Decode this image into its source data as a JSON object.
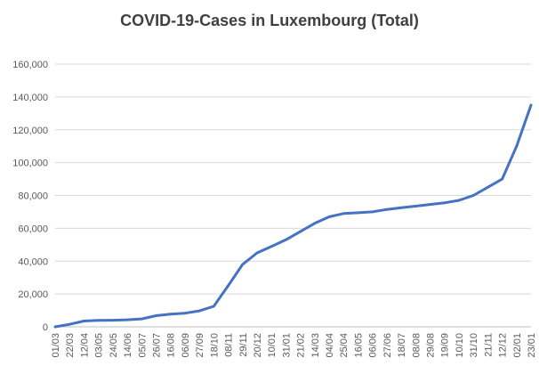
{
  "chart_data": {
    "type": "line",
    "title": "COVID-19-Cases in Luxembourg (Total)",
    "xlabel": "",
    "ylabel": "",
    "ylim": [
      0,
      160000
    ],
    "yticks": [
      0,
      20000,
      40000,
      60000,
      80000,
      100000,
      120000,
      140000,
      160000
    ],
    "ytick_labels": [
      "0",
      "20,000",
      "40,000",
      "60,000",
      "80,000",
      "100,000",
      "120,000",
      "140,000",
      "160,000"
    ],
    "grid": "horizontal",
    "legend": "none",
    "line_color": "#4472C4",
    "x": [
      "01/03",
      "22/03",
      "12/04",
      "03/05",
      "24/05",
      "14/06",
      "05/07",
      "26/07",
      "16/08",
      "06/09",
      "27/09",
      "18/10",
      "08/11",
      "29/11",
      "20/12",
      "10/01",
      "31/01",
      "21/02",
      "14/03",
      "04/04",
      "25/04",
      "16/05",
      "06/06",
      "27/06",
      "18/07",
      "08/08",
      "29/08",
      "19/09",
      "10/10",
      "31/10",
      "21/11",
      "12/12",
      "02/01",
      "23/01"
    ],
    "series": [
      {
        "values": [
          0,
          1500,
          3500,
          3900,
          4000,
          4300,
          4800,
          6800,
          7700,
          8300,
          9700,
          12500,
          25000,
          38000,
          45000,
          49000,
          53000,
          58000,
          63000,
          67000,
          69000,
          69500,
          70000,
          71500,
          72500,
          73500,
          74500,
          75500,
          77000,
          80000,
          85000,
          90000,
          110000,
          135000
        ]
      }
    ]
  }
}
